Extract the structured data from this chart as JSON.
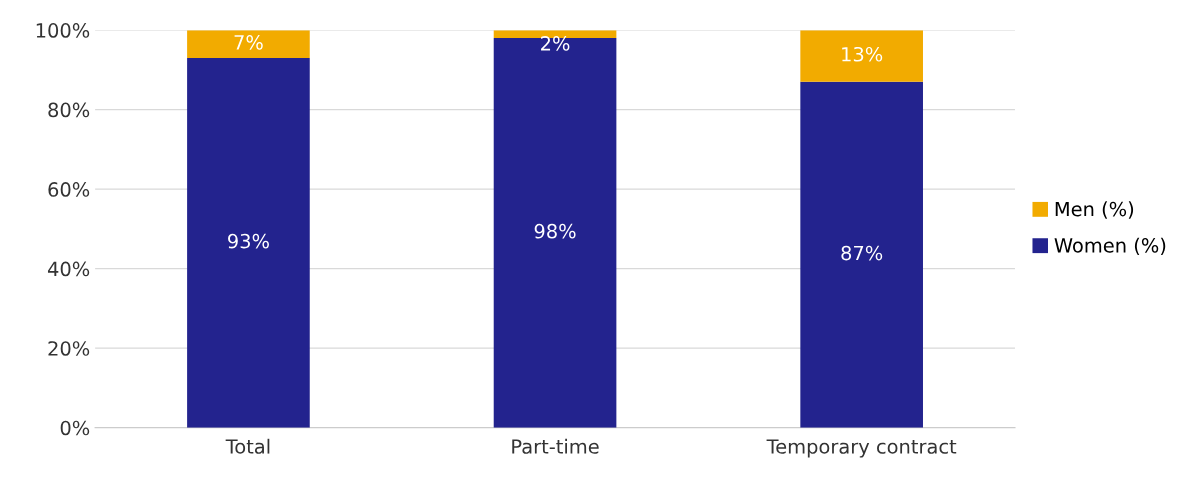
{
  "chart_data": {
    "type": "bar",
    "stacked": true,
    "categories": [
      "Total",
      "Part-time",
      "Temporary contract"
    ],
    "series": [
      {
        "name": "Women (%)",
        "color": "#23238e",
        "values": [
          93,
          98,
          87
        ],
        "value_labels": [
          "93%",
          "98%",
          "87%"
        ]
      },
      {
        "name": "Men (%)",
        "color": "#f2ab00",
        "values": [
          7,
          2,
          13
        ],
        "value_labels": [
          "7%",
          "2%",
          "13%"
        ]
      }
    ],
    "ylim": [
      0,
      100
    ],
    "yticks": [
      {
        "value": 0,
        "label": "0%"
      },
      {
        "value": 20,
        "label": "20%"
      },
      {
        "value": 40,
        "label": "40%"
      },
      {
        "value": 60,
        "label": "60%"
      },
      {
        "value": 80,
        "label": "80%"
      },
      {
        "value": 100,
        "label": "100%"
      }
    ],
    "grid": "y",
    "legend": "right"
  }
}
